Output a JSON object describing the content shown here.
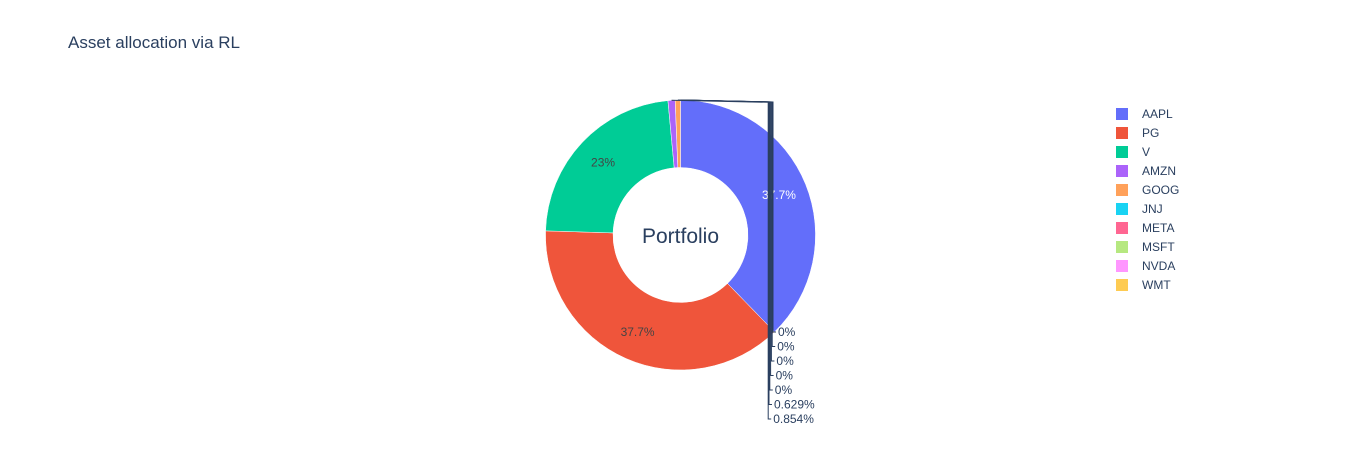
{
  "chart_data": {
    "type": "pie",
    "title": "Asset allocation via RL",
    "center_label": "Portfolio",
    "hole": true,
    "legend_position": "right",
    "slices": [
      {
        "label": "AAPL",
        "value": 37.7,
        "text": "37.7%",
        "color": "#636efa"
      },
      {
        "label": "PG",
        "value": 37.7,
        "text": "37.7%",
        "color": "#ef553b"
      },
      {
        "label": "V",
        "value": 23.0,
        "text": "23%",
        "color": "#00cc96"
      },
      {
        "label": "AMZN",
        "value": 0.854,
        "text": "0.854%",
        "color": "#ab63fa"
      },
      {
        "label": "GOOG",
        "value": 0.629,
        "text": "0.629%",
        "color": "#ffa15a"
      },
      {
        "label": "JNJ",
        "value": 0,
        "text": "0%",
        "color": "#19d3f3"
      },
      {
        "label": "META",
        "value": 0,
        "text": "0%",
        "color": "#ff6692"
      },
      {
        "label": "MSFT",
        "value": 0,
        "text": "0%",
        "color": "#b6e880"
      },
      {
        "label": "NVDA",
        "value": 0,
        "text": "0%",
        "color": "#ff97ff"
      },
      {
        "label": "WMT",
        "value": 0,
        "text": "0%",
        "color": "#fecb52"
      }
    ]
  }
}
